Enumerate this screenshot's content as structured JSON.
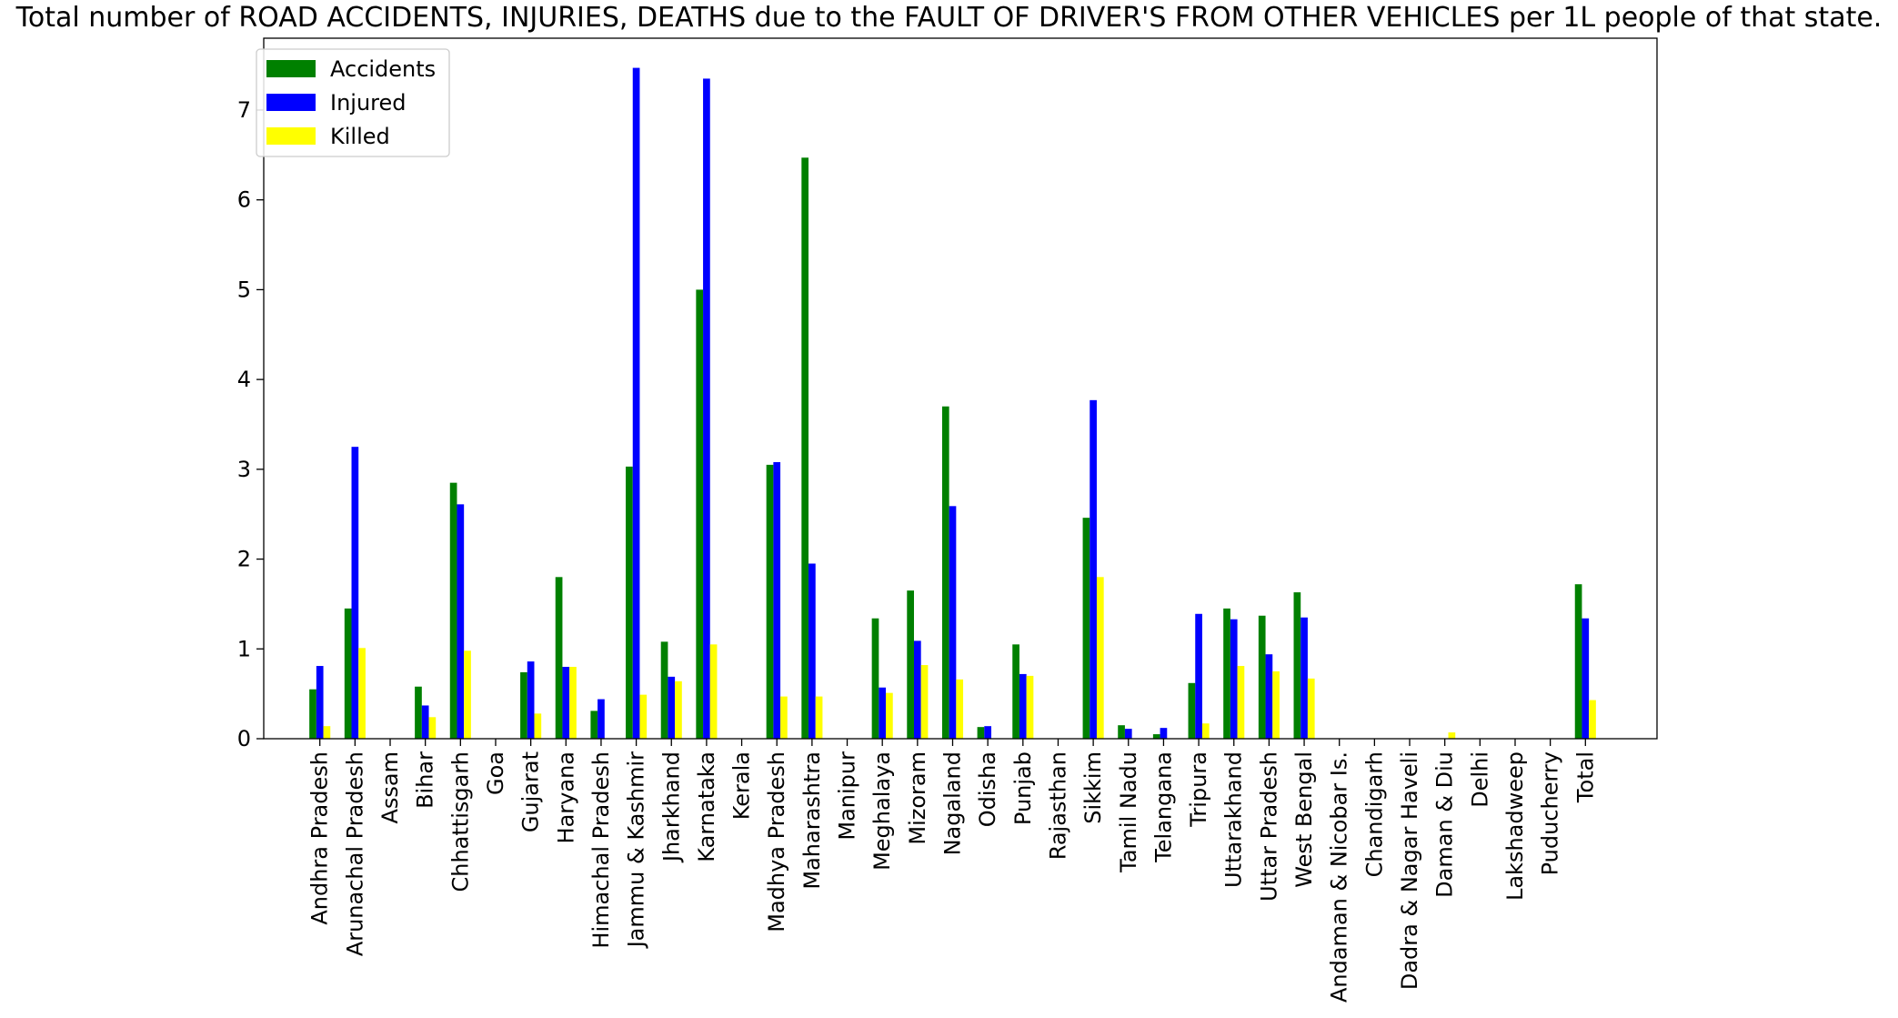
{
  "chart_data": {
    "type": "bar",
    "title": "Total number of ROAD ACCIDENTS, INJURIES, DEATHS due to the FAULT OF DRIVER'S FROM OTHER VEHICLES per 1L people of that state.",
    "xlabel": "",
    "ylabel": "",
    "ylim": [
      0,
      7.8
    ],
    "yticks": [
      0,
      1,
      2,
      3,
      4,
      5,
      6,
      7
    ],
    "grid": false,
    "legend_position": "top-left",
    "categories": [
      "Andhra Pradesh",
      "Arunachal Pradesh",
      "Assam",
      "Bihar",
      "Chhattisgarh",
      "Goa",
      "Gujarat",
      "Haryana",
      "Himachal Pradesh",
      "Jammu & Kashmir",
      "Jharkhand",
      "Karnataka",
      "Kerala",
      "Madhya Pradesh",
      "Maharashtra",
      "Manipur",
      "Meghalaya",
      "Mizoram",
      "Nagaland",
      "Odisha",
      "Punjab",
      "Rajasthan",
      "Sikkim",
      "Tamil Nadu",
      "Telangana",
      "Tripura",
      "Uttarakhand",
      "Uttar Pradesh",
      "West Bengal",
      "Andaman & Nicobar Is.",
      "Chandigarh",
      "Dadra & Nagar Haveli",
      "Daman & Diu",
      "Delhi",
      "Lakshadweep",
      "Puducherry",
      "Total"
    ],
    "series": [
      {
        "name": "Accidents",
        "color": "#008000",
        "values": [
          0.55,
          1.45,
          0,
          0.58,
          2.85,
          0,
          0.74,
          1.8,
          0.31,
          3.03,
          1.08,
          5.0,
          0,
          3.05,
          6.47,
          0,
          1.34,
          1.65,
          3.7,
          0.13,
          1.05,
          0,
          2.46,
          0.15,
          0.05,
          0.62,
          1.45,
          1.37,
          1.63,
          0,
          0,
          0,
          0,
          0,
          0,
          0,
          1.72
        ]
      },
      {
        "name": "Injured",
        "color": "#0000ff",
        "values": [
          0.81,
          3.25,
          0,
          0.37,
          2.61,
          0,
          0.86,
          0.8,
          0.44,
          7.47,
          0.69,
          7.35,
          0,
          3.08,
          1.95,
          0,
          0.57,
          1.09,
          2.59,
          0.14,
          0.72,
          0,
          3.77,
          0.11,
          0.12,
          1.39,
          1.33,
          0.94,
          1.35,
          0,
          0,
          0,
          0,
          0,
          0,
          0,
          1.34
        ]
      },
      {
        "name": "Killed",
        "color": "#ffff00",
        "values": [
          0.14,
          1.01,
          0,
          0.24,
          0.98,
          0,
          0.28,
          0.8,
          0.0,
          0.49,
          0.64,
          1.05,
          0,
          0.47,
          0.47,
          0,
          0.51,
          0.82,
          0.66,
          0.0,
          0.7,
          0,
          1.8,
          0.0,
          0.0,
          0.17,
          0.81,
          0.75,
          0.67,
          0,
          0,
          0,
          0.07,
          0,
          0,
          0,
          0.43
        ]
      }
    ]
  }
}
